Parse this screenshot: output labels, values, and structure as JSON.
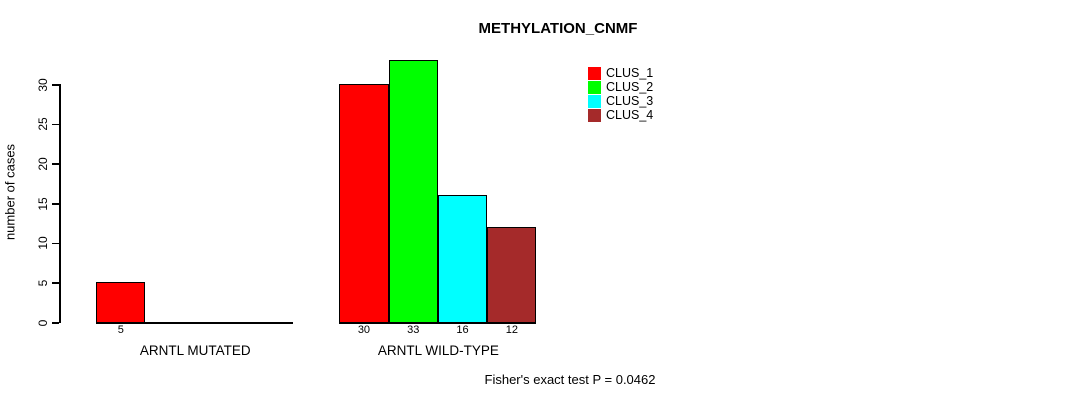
{
  "title": "METHYLATION_CNMF",
  "footer": "Fisher's exact test P = 0.0462",
  "y_axis": {
    "label": "number of cases"
  },
  "legend": {
    "items": [
      {
        "label": "CLUS_1",
        "color": "#FF0000"
      },
      {
        "label": "CLUS_2",
        "color": "#00FF00"
      },
      {
        "label": "CLUS_3",
        "color": "#00FFFF"
      },
      {
        "label": "CLUS_4",
        "color": "#A52A2A"
      }
    ]
  },
  "chart_data": {
    "type": "bar",
    "title": "METHYLATION_CNMF",
    "ylabel": "number of cases",
    "xlabel": "",
    "ylim": [
      0,
      33
    ],
    "yticks": [
      0,
      5,
      10,
      15,
      20,
      25,
      30
    ],
    "grid": false,
    "legend_position": "top-right",
    "categories": [
      "ARNTL MUTATED",
      "ARNTL WILD-TYPE"
    ],
    "series": [
      {
        "name": "CLUS_1",
        "color": "#FF0000",
        "values": [
          5,
          30
        ]
      },
      {
        "name": "CLUS_2",
        "color": "#00FF00",
        "values": [
          null,
          33
        ]
      },
      {
        "name": "CLUS_3",
        "color": "#00FFFF",
        "values": [
          null,
          16
        ]
      },
      {
        "name": "CLUS_4",
        "color": "#A52A2A",
        "values": [
          null,
          12
        ]
      }
    ],
    "bar_value_labels": [
      [
        5
      ],
      [
        30,
        33,
        16,
        12
      ]
    ],
    "annotation": "Fisher's exact test P = 0.0462"
  }
}
